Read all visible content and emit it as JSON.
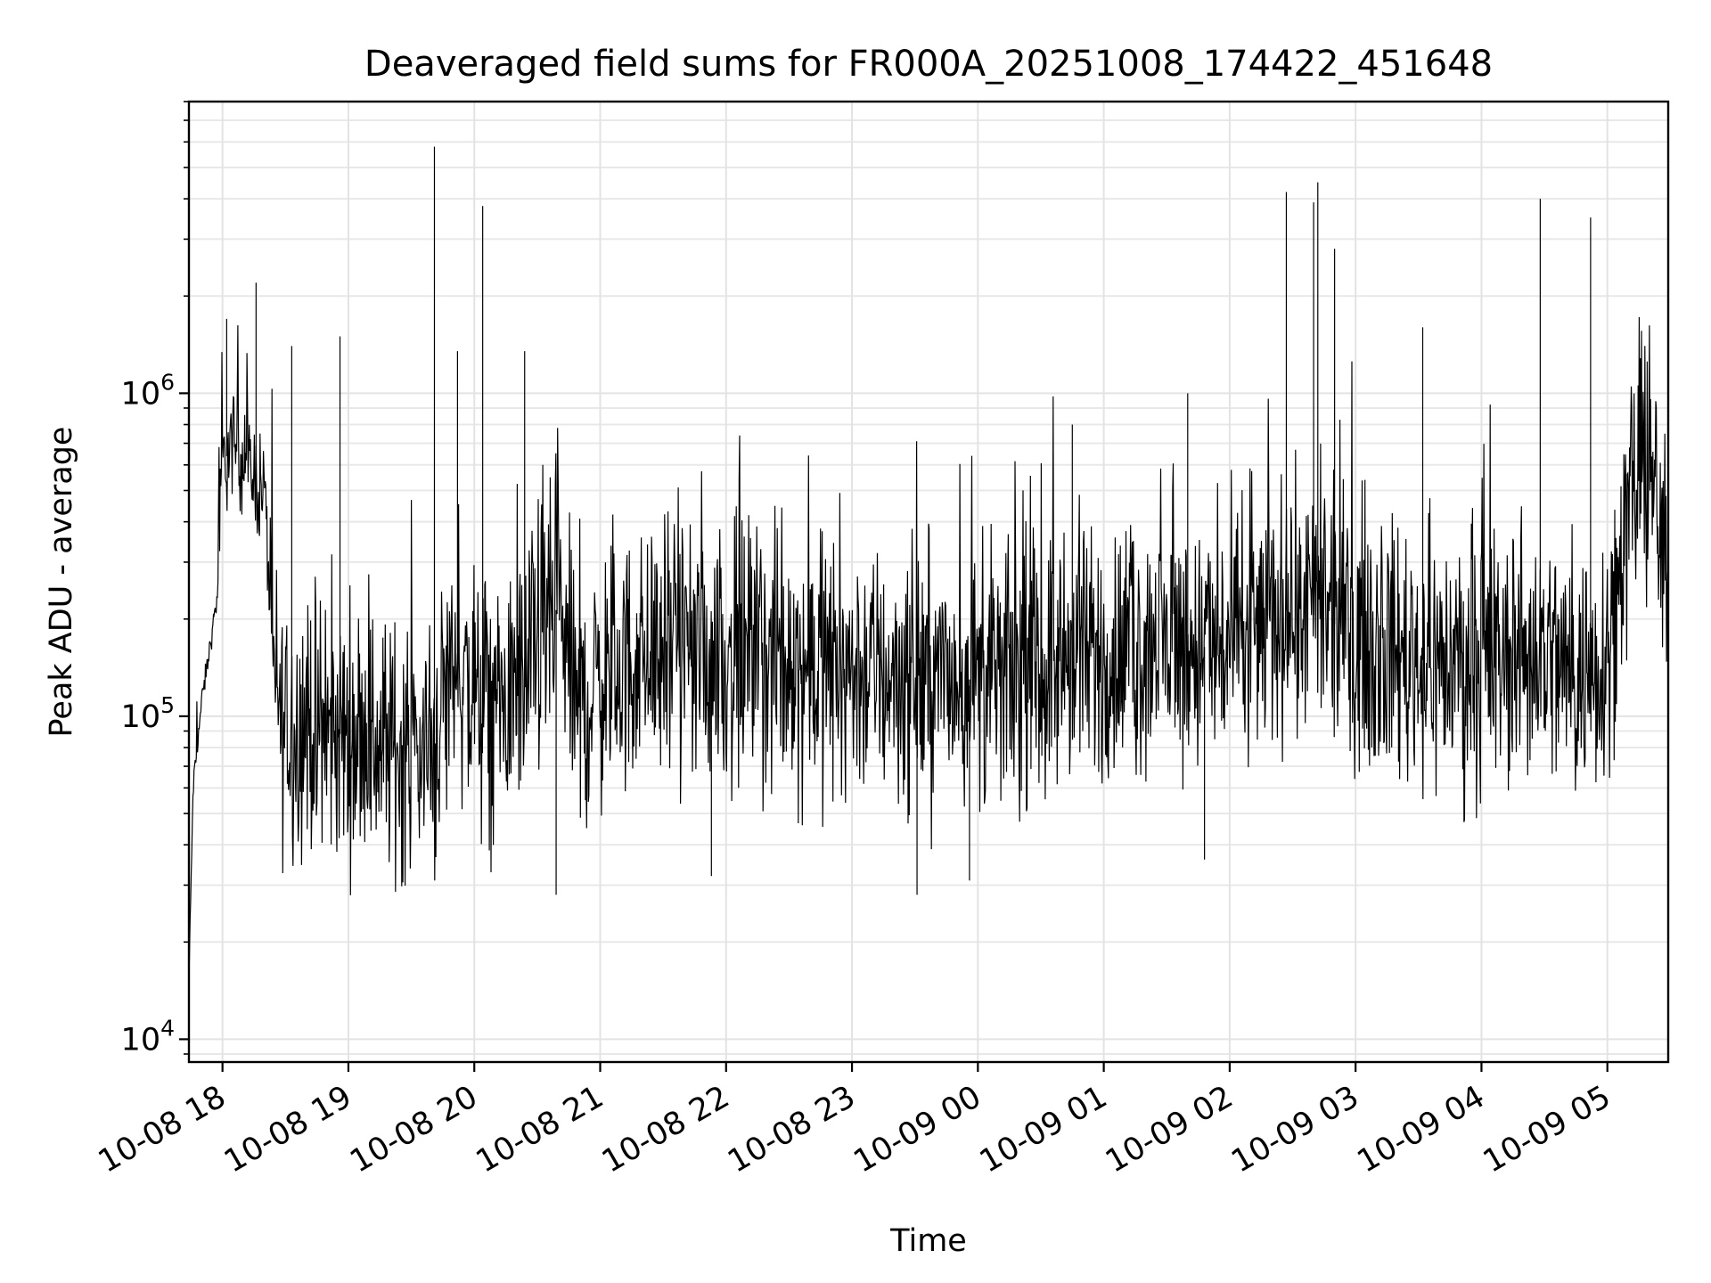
{
  "chart_data": {
    "type": "line",
    "title": "Deaveraged field sums for FR000A_20251008_174422_451648",
    "xlabel": "Time",
    "ylabel": "Peak ADU - average",
    "yscale": "log",
    "ylim": [
      8500,
      8000000
    ],
    "y_ticks": [
      {
        "base": "10",
        "exp": "4",
        "value": 10000
      },
      {
        "base": "10",
        "exp": "5",
        "value": 100000
      },
      {
        "base": "10",
        "exp": "6",
        "value": 1000000
      }
    ],
    "xlim": [
      "2025-10-08 17:44",
      "2025-10-09 05:29"
    ],
    "x_tick_labels": [
      "10-08 18",
      "10-08 19",
      "10-08 20",
      "10-08 21",
      "10-08 22",
      "10-08 23",
      "10-09 00",
      "10-09 01",
      "10-09 02",
      "10-09 03",
      "10-09 04",
      "10-09 05"
    ],
    "x_tick_times": [
      "2025-10-08 18:00",
      "2025-10-08 19:00",
      "2025-10-08 20:00",
      "2025-10-08 21:00",
      "2025-10-08 22:00",
      "2025-10-08 23:00",
      "2025-10-09 00:00",
      "2025-10-09 01:00",
      "2025-10-09 02:00",
      "2025-10-09 03:00",
      "2025-10-09 04:00",
      "2025-10-09 05:00"
    ],
    "grid": "both",
    "color": "#000000",
    "series": [
      {
        "x": [
          "2025-10-08 17:44",
          "2025-10-08 17:46",
          "2025-10-08 17:50",
          "2025-10-08 17:55",
          "2025-10-08 17:58",
          "2025-10-08 18:00",
          "2025-10-08 18:05",
          "2025-10-08 18:10",
          "2025-10-08 18:15",
          "2025-10-08 18:20",
          "2025-10-08 18:25",
          "2025-10-08 18:30",
          "2025-10-08 18:40",
          "2025-10-08 18:50",
          "2025-10-08 19:00",
          "2025-10-08 19:10",
          "2025-10-08 19:20",
          "2025-10-08 19:30",
          "2025-10-08 19:40",
          "2025-10-08 19:50",
          "2025-10-08 20:00",
          "2025-10-08 20:10",
          "2025-10-08 20:20",
          "2025-10-08 20:30",
          "2025-10-08 20:40",
          "2025-10-08 20:50",
          "2025-10-08 21:00",
          "2025-10-08 21:30",
          "2025-10-08 22:00",
          "2025-10-08 22:30",
          "2025-10-08 23:00",
          "2025-10-08 23:30",
          "2025-10-09 00:00",
          "2025-10-09 00:30",
          "2025-10-09 01:00",
          "2025-10-09 01:30",
          "2025-10-09 02:00",
          "2025-10-09 02:30",
          "2025-10-09 03:00",
          "2025-10-09 03:30",
          "2025-10-09 04:00",
          "2025-10-09 04:15",
          "2025-10-09 04:30",
          "2025-10-09 04:45",
          "2025-10-09 05:00",
          "2025-10-09 05:10",
          "2025-10-09 05:20",
          "2025-10-09 05:29"
        ],
        "y": [
          15000,
          60000,
          110000,
          180000,
          250000,
          600000,
          700000,
          650000,
          550000,
          500000,
          120000,
          90000,
          95000,
          85000,
          90000,
          85000,
          80000,
          80000,
          75000,
          150000,
          110000,
          100000,
          120000,
          160000,
          220000,
          100000,
          130000,
          160000,
          150000,
          145000,
          140000,
          130000,
          130000,
          140000,
          150000,
          170000,
          160000,
          220000,
          180000,
          150000,
          140000,
          150000,
          160000,
          130000,
          160000,
          450000,
          650000,
          220000
        ],
        "spikes": [
          {
            "x": "2025-10-08 18:02",
            "y": 1700000
          },
          {
            "x": "2025-10-08 18:16",
            "y": 2200000
          },
          {
            "x": "2025-10-08 18:33",
            "y": 1400000
          },
          {
            "x": "2025-10-08 18:56",
            "y": 1500000
          },
          {
            "x": "2025-10-08 19:41",
            "y": 5800000
          },
          {
            "x": "2025-10-08 19:52",
            "y": 1350000
          },
          {
            "x": "2025-10-08 20:04",
            "y": 3800000
          },
          {
            "x": "2025-10-08 20:24",
            "y": 1350000
          },
          {
            "x": "2025-10-08 20:39",
            "y": 28000
          },
          {
            "x": "2025-10-08 21:53",
            "y": 32000
          },
          {
            "x": "2025-10-08 23:31",
            "y": 28000
          },
          {
            "x": "2025-10-08 23:56",
            "y": 31000
          },
          {
            "x": "2025-10-09 00:45",
            "y": 800000
          },
          {
            "x": "2025-10-09 01:48",
            "y": 36000
          },
          {
            "x": "2025-10-09 01:40",
            "y": 1000000
          },
          {
            "x": "2025-10-09 02:27",
            "y": 4200000
          },
          {
            "x": "2025-10-09 02:40",
            "y": 3900000
          },
          {
            "x": "2025-10-09 02:42",
            "y": 4500000
          },
          {
            "x": "2025-10-09 02:50",
            "y": 2800000
          },
          {
            "x": "2025-10-09 03:32",
            "y": 1600000
          },
          {
            "x": "2025-10-09 04:28",
            "y": 4000000
          },
          {
            "x": "2025-10-09 04:52",
            "y": 3500000
          },
          {
            "x": "2025-10-09 05:15",
            "y": 1000000
          }
        ]
      }
    ]
  }
}
